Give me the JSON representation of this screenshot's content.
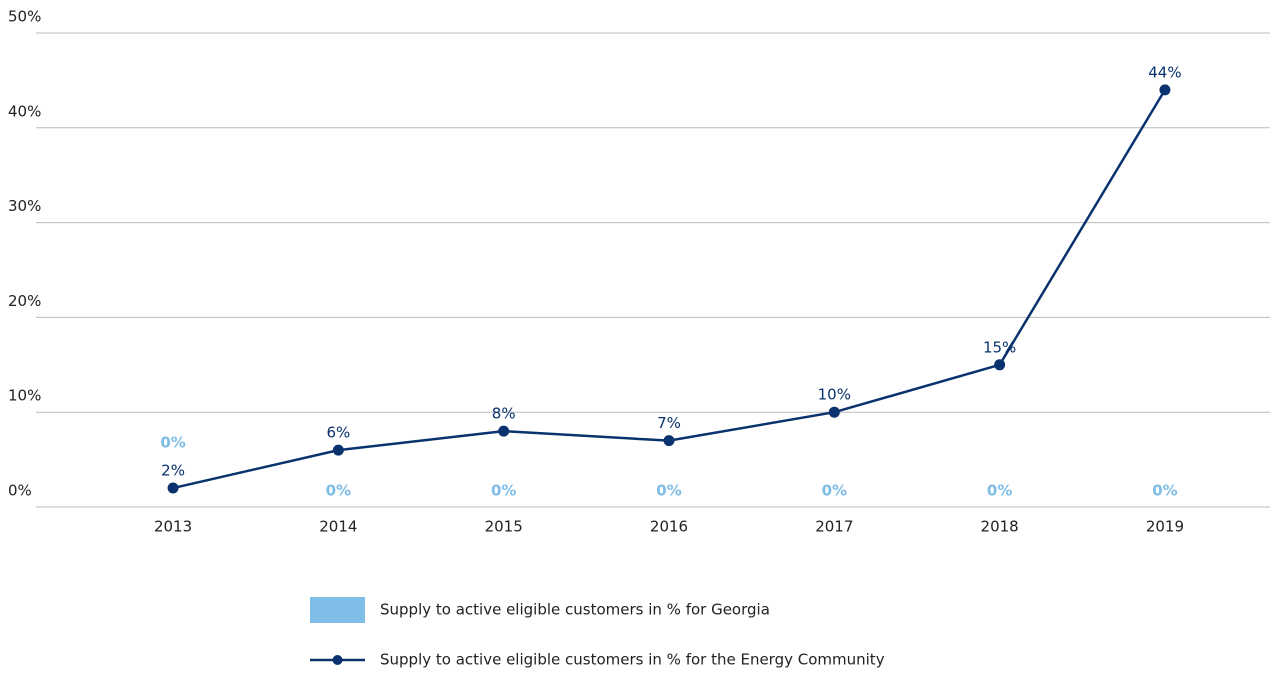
{
  "chart_data": {
    "type": "combo",
    "categories": [
      "2013",
      "2014",
      "2015",
      "2016",
      "2017",
      "2018",
      "2019"
    ],
    "series": [
      {
        "name": "Supply to active eligible customers in % for Georgia",
        "type": "bar",
        "color": "#7dbde6",
        "values": [
          0,
          0,
          0,
          0,
          0,
          0,
          0
        ],
        "value_labels": [
          "0%",
          "0%",
          "0%",
          "0%",
          "0%",
          "0%",
          "0%"
        ]
      },
      {
        "name": "Supply to active eligible customers in % for the Energy Community",
        "type": "line",
        "color": "#0a326e",
        "values": [
          2,
          6,
          8,
          7,
          10,
          15,
          44
        ],
        "value_labels": [
          "2%",
          "6%",
          "8%",
          "7%",
          "10%",
          "15%",
          "44%"
        ]
      }
    ],
    "ylim": [
      0,
      50
    ],
    "yticks": [
      {
        "value": 0,
        "label": "0%"
      },
      {
        "value": 10,
        "label": "10%"
      },
      {
        "value": 20,
        "label": "20%"
      },
      {
        "value": 30,
        "label": "30%"
      },
      {
        "value": 40,
        "label": "40%"
      },
      {
        "value": 50,
        "label": "50%"
      }
    ],
    "grid": true
  }
}
